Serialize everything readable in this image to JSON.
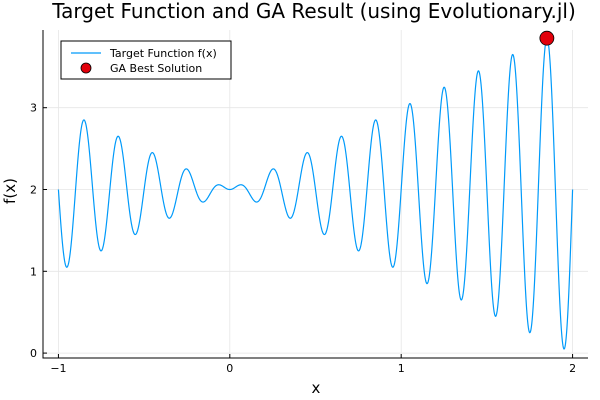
{
  "chart_data": {
    "type": "line",
    "title": "Target Function and GA Result (using Evolutionary.jl)",
    "xlabel": "x",
    "ylabel": "f(x)",
    "xlim": [
      -1.09,
      2.09
    ],
    "ylim": [
      -0.06,
      3.95
    ],
    "x_ticks": [
      -1,
      0,
      1,
      2
    ],
    "x_tick_labels": [
      "−1",
      "0",
      "1",
      "2"
    ],
    "y_ticks": [
      0,
      1,
      2,
      3
    ],
    "y_tick_labels": [
      "0",
      "1",
      "2",
      "3"
    ],
    "grid": true,
    "legend_position": "top-left",
    "series": [
      {
        "name": "Target Function f(x)",
        "kind": "line",
        "color": "#009AFA",
        "x_range": [
          -1,
          2
        ],
        "function": "x*sin(10*pi*x) + 2"
      },
      {
        "name": "GA Best Solution",
        "kind": "scatter",
        "color": "#E2000B",
        "points": [
          [
            1.85,
            3.85
          ]
        ]
      }
    ]
  }
}
